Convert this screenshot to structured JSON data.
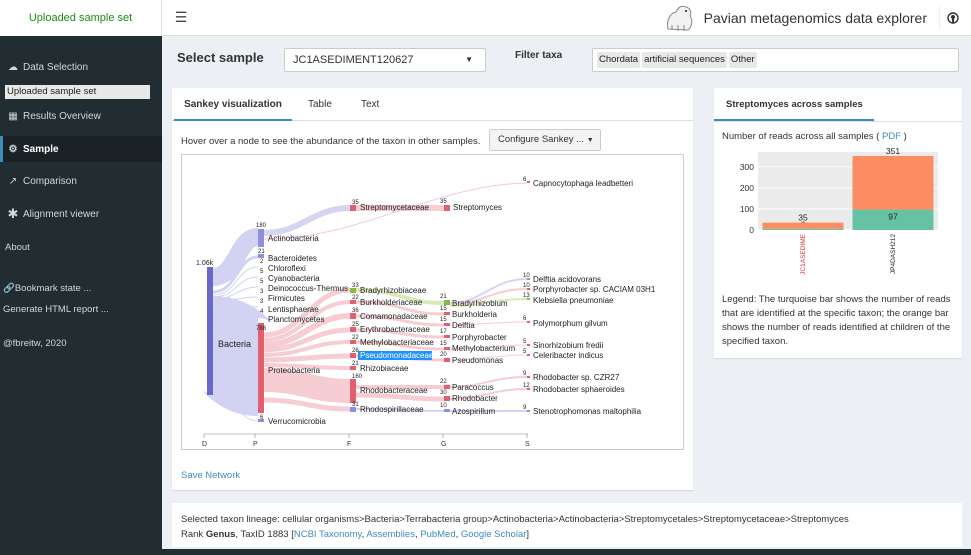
{
  "header": {
    "logo_text": "Uploaded sample set",
    "app_title": "Pavian metagenomics data explorer",
    "menu_icon": "hamburger-icon",
    "github_icon": "github-icon"
  },
  "sidebar": {
    "items": [
      {
        "label": "Data Selection",
        "icon": "cloud-upload-icon"
      },
      {
        "label": "Results Overview",
        "icon": "table-icon"
      },
      {
        "label": "Sample",
        "icon": "gear-icon"
      },
      {
        "label": "Comparison",
        "icon": "line-chart-icon"
      },
      {
        "label": "Alignment viewer",
        "icon": "asterisk-icon"
      },
      {
        "label": "About",
        "icon": ""
      }
    ],
    "sub_item": "Uploaded sample set",
    "bookmark": "Bookmark state ...",
    "report": "Generate HTML report ...",
    "credit": "@fbreitw, 2020"
  },
  "controls": {
    "select_label": "Select sample",
    "selected_sample": "JC1ASEDIMENT120627",
    "filter_label": "Filter taxa",
    "filter_tags": [
      "Chordata",
      "artificial sequences",
      "Other"
    ]
  },
  "main": {
    "tabs": [
      "Sankey visualization",
      "Table",
      "Text"
    ],
    "hint": "Hover over a node to see the abundance of the taxon in other samples.",
    "configure_button": "Configure Sankey ...",
    "save_link": "Save Network"
  },
  "sankey": {
    "ranks": [
      "D",
      "P",
      "F",
      "G",
      "S"
    ],
    "root": {
      "label": "Bacteria",
      "value": "1.06k"
    },
    "phyla": [
      {
        "label": "Actinobacteria",
        "value": "180"
      },
      {
        "label": "Bacteroidetes",
        "value": "21"
      },
      {
        "label": "Chloroflexi",
        "value": "2"
      },
      {
        "label": "Cyanobacteria",
        "value": "5"
      },
      {
        "label": "Deinococcus-Thermus",
        "value": "5"
      },
      {
        "label": "Firmicutes",
        "value": "3"
      },
      {
        "label": "Lentisphaerae",
        "value": "3"
      },
      {
        "label": "Planctomycetes",
        "value": "4"
      },
      {
        "label": "Proteobacteria",
        "value": "788"
      },
      {
        "label": "Verrucomicrobia",
        "value": "6"
      }
    ],
    "families": [
      {
        "label": "Streptomycetaceae",
        "value": "35"
      },
      {
        "label": "Bradyrhizobiaceae",
        "value": "33"
      },
      {
        "label": "Burkholderiaceae",
        "value": "22"
      },
      {
        "label": "Comamonadaceae",
        "value": "36"
      },
      {
        "label": "Erythrobacteraceae",
        "value": "25"
      },
      {
        "label": "Methylobacteriaceae",
        "value": "22"
      },
      {
        "label": "Pseudomonadaceae",
        "value": "26"
      },
      {
        "label": "Rhizobiaceae",
        "value": "21"
      },
      {
        "label": "Rhodobacteraceae",
        "value": "160"
      },
      {
        "label": "Rhodospirillaceae",
        "value": "31"
      }
    ],
    "genera": [
      {
        "label": "Streptomyces",
        "value": "35"
      },
      {
        "label": "Bradyrhizobium",
        "value": "21"
      },
      {
        "label": "Burkholderia",
        "value": "15"
      },
      {
        "label": "Delftia",
        "value": "15"
      },
      {
        "label": "Porphyrobacter",
        "value": "17"
      },
      {
        "label": "Methylobacterium",
        "value": "15"
      },
      {
        "label": "Pseudomonas",
        "value": "20"
      },
      {
        "label": "Paracoccus",
        "value": "22"
      },
      {
        "label": "Rhodobacter",
        "value": "30"
      },
      {
        "label": "Azospirillum",
        "value": "10"
      }
    ],
    "species": [
      {
        "label": "Capnocytophaga leadbetteri",
        "value": "6"
      },
      {
        "label": "Delftia acidovorans",
        "value": "10"
      },
      {
        "label": "Porphyrobacter sp. CACIAM 03H1",
        "value": "10"
      },
      {
        "label": "Klebsiella pneumoniae",
        "value": "13"
      },
      {
        "label": "Polymorphum gilvum",
        "value": "6"
      },
      {
        "label": "Sinorhizobium fredii",
        "value": "5"
      },
      {
        "label": "Celeribacter indicus",
        "value": "5"
      },
      {
        "label": "Rhodobacter sp. CZR27",
        "value": "9"
      },
      {
        "label": "Rhodobacter sphaeroides",
        "value": "12"
      },
      {
        "label": "Stenotrophomonas maltophilia",
        "value": "9"
      }
    ],
    "highlighted": "Pseudomonadaceae",
    "colors": {
      "actino": "#8f8fe0",
      "proteo": "#e06070",
      "root": "#6868c8",
      "family_green": "#8ab84a",
      "link_blue": "#c4c4ee",
      "link_pink": "#f2b8c0",
      "highlight": "#1e90ff"
    }
  },
  "right_panel": {
    "tab": "Streptomyces across samples",
    "reads_label": "Number of reads across all samples (",
    "pdf_link": "PDF",
    "reads_close": ")",
    "legend": "Legend: The turquoise bar shows the number of reads that are identified at the specific taxon; the orange bar shows the number of reads identified at children of the specified taxon."
  },
  "chart_data": {
    "type": "bar",
    "categories": [
      "JC1ASEDIME",
      "JP4DASH212"
    ],
    "series": [
      {
        "values": [
          6,
          97
        ],
        "color": "#66c2a5"
      },
      {
        "values": [
          29,
          254
        ],
        "color": "#fc8d62"
      }
    ],
    "totals": [
      35,
      351
    ],
    "ylim": [
      0,
      370
    ],
    "yticks": [
      0,
      100,
      200,
      300
    ],
    "stacked": true,
    "highlight_category": "JC1ASEDIME",
    "highlight_color": "#e03030"
  },
  "lineage": {
    "prefix": "Selected taxon lineage: ",
    "path": "cellular organisms>Bacteria>Terrabacteria group>Actinobacteria>Actinobacteria>Streptomycetales>Streptomycetaceae>Streptomyces",
    "rank_label": "Rank ",
    "rank": "Genus",
    "taxid": ", TaxID 1883 [",
    "links": [
      "NCBI Taxonomy",
      "Assemblies",
      "PubMed",
      "Google Scholar"
    ],
    "close": "]"
  }
}
